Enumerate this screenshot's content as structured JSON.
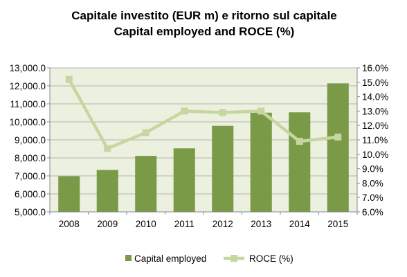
{
  "chart_data": {
    "type": "bar",
    "title": [
      "Capitale investito (EUR m) e ritorno sul capitale",
      "Capital employed and ROCE (%)"
    ],
    "categories": [
      "2008",
      "2009",
      "2010",
      "2011",
      "2012",
      "2013",
      "2014",
      "2015"
    ],
    "series": [
      {
        "name": "Capital employed",
        "type": "bar",
        "axis": "left",
        "color": "#7a9a48",
        "values": [
          6980,
          7330,
          8110,
          8530,
          9780,
          10510,
          10530,
          12140
        ]
      },
      {
        "name": "ROCE (%)",
        "type": "line",
        "axis": "right",
        "color": "#c5d6a0",
        "values": [
          15.2,
          10.4,
          11.5,
          13.0,
          12.9,
          13.0,
          10.9,
          11.2
        ]
      }
    ],
    "y_left": {
      "min": 5000,
      "max": 13000,
      "step": 1000,
      "ticks": [
        "5,000.0",
        "6,000.0",
        "7,000.0",
        "8,000.0",
        "9,000.0",
        "10,000.0",
        "11,000.0",
        "12,000.0",
        "13,000.0"
      ]
    },
    "y_right": {
      "min": 6,
      "max": 16,
      "step": 1,
      "ticks": [
        "6.0%",
        "7.0%",
        "8.0%",
        "9.0%",
        "10.0%",
        "11.0%",
        "12.0%",
        "13.0%",
        "14.0%",
        "15.0%",
        "16.0%"
      ]
    },
    "plot_background": "#ebf1de",
    "grid": true,
    "legend": "bottom"
  }
}
